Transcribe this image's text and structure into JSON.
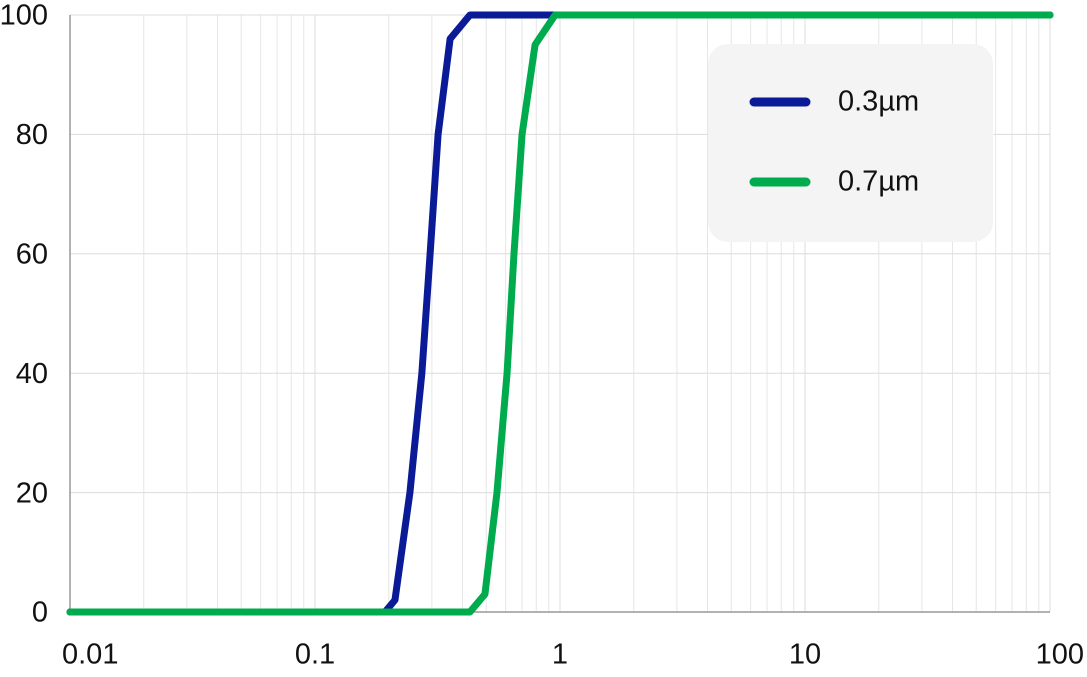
{
  "chart_data": {
    "type": "line",
    "xscale": "log",
    "xlim": [
      0.01,
      100
    ],
    "xticks": [
      0.01,
      0.1,
      1,
      10,
      100
    ],
    "ylim": [
      0,
      100
    ],
    "yticks": [
      0,
      20,
      40,
      60,
      80,
      100
    ],
    "grid": true,
    "legend": "upper right",
    "series": [
      {
        "name": "0.3µm",
        "color": "#0b1a96",
        "x": [
          0.01,
          0.193,
          0.212,
          0.244,
          0.273,
          0.295,
          0.318,
          0.356,
          0.429,
          100
        ],
        "values": [
          0,
          0,
          2,
          20,
          40,
          60,
          80,
          96,
          100,
          100
        ]
      },
      {
        "name": "0.7µm",
        "color": "#00ab4e",
        "x": [
          0.01,
          0.429,
          0.494,
          0.553,
          0.608,
          0.649,
          0.7,
          0.791,
          0.955,
          100
        ],
        "values": [
          0,
          0,
          3,
          20,
          40,
          60,
          80,
          95,
          100,
          100
        ]
      }
    ]
  }
}
